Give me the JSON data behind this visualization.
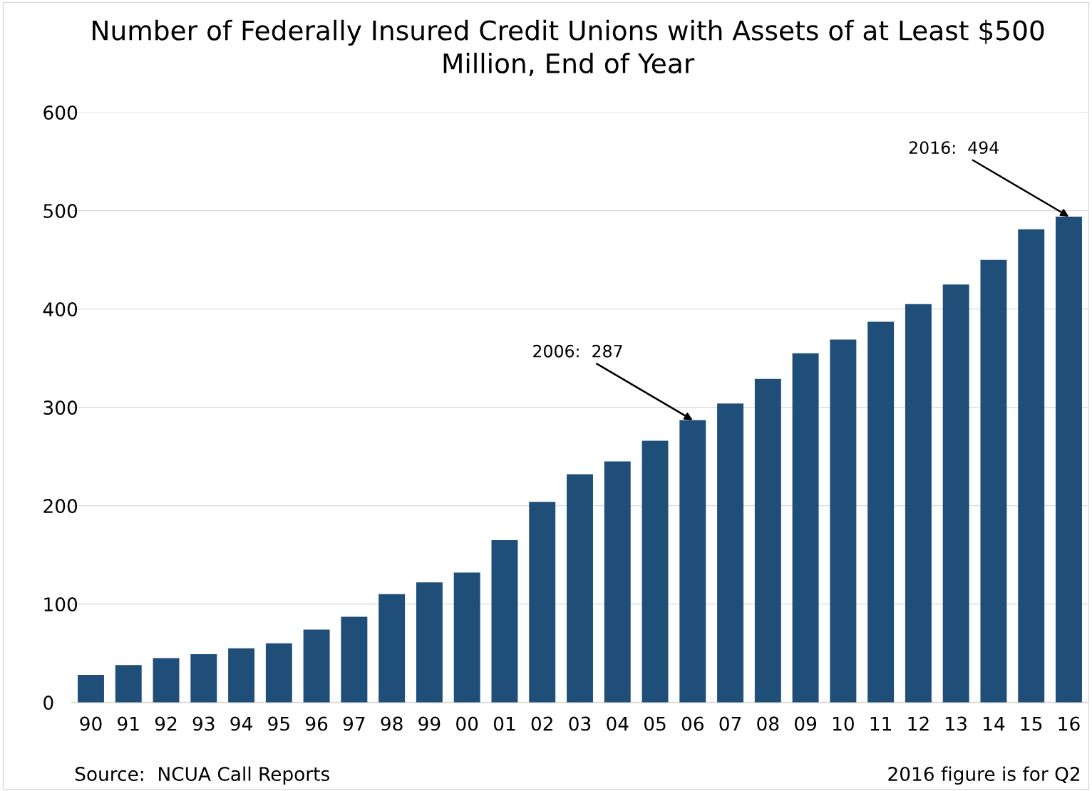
{
  "chart_data": {
    "type": "bar",
    "title": "Number of Federally Insured Credit Unions with Assets of at Least $500 Million, End of Year",
    "categories": [
      "90",
      "91",
      "92",
      "93",
      "94",
      "95",
      "96",
      "97",
      "98",
      "99",
      "00",
      "01",
      "02",
      "03",
      "04",
      "05",
      "06",
      "07",
      "08",
      "09",
      "10",
      "11",
      "12",
      "13",
      "14",
      "15",
      "16"
    ],
    "values": [
      28,
      38,
      45,
      49,
      55,
      60,
      74,
      87,
      110,
      122,
      132,
      165,
      204,
      232,
      245,
      266,
      287,
      304,
      329,
      355,
      369,
      387,
      405,
      425,
      450,
      481,
      494
    ],
    "color": "#1f4e79",
    "ylim": [
      0,
      600
    ],
    "yticks": [
      0,
      100,
      200,
      300,
      400,
      500,
      600
    ],
    "grid": "y",
    "legend": false,
    "annotations": [
      {
        "text": "2006:  287",
        "x": "06",
        "y": 287
      },
      {
        "text": "2016:  494",
        "x": "16",
        "y": 494
      },
      "Source:  NCUA Call Reports",
      "2016 figure is for Q2"
    ]
  }
}
